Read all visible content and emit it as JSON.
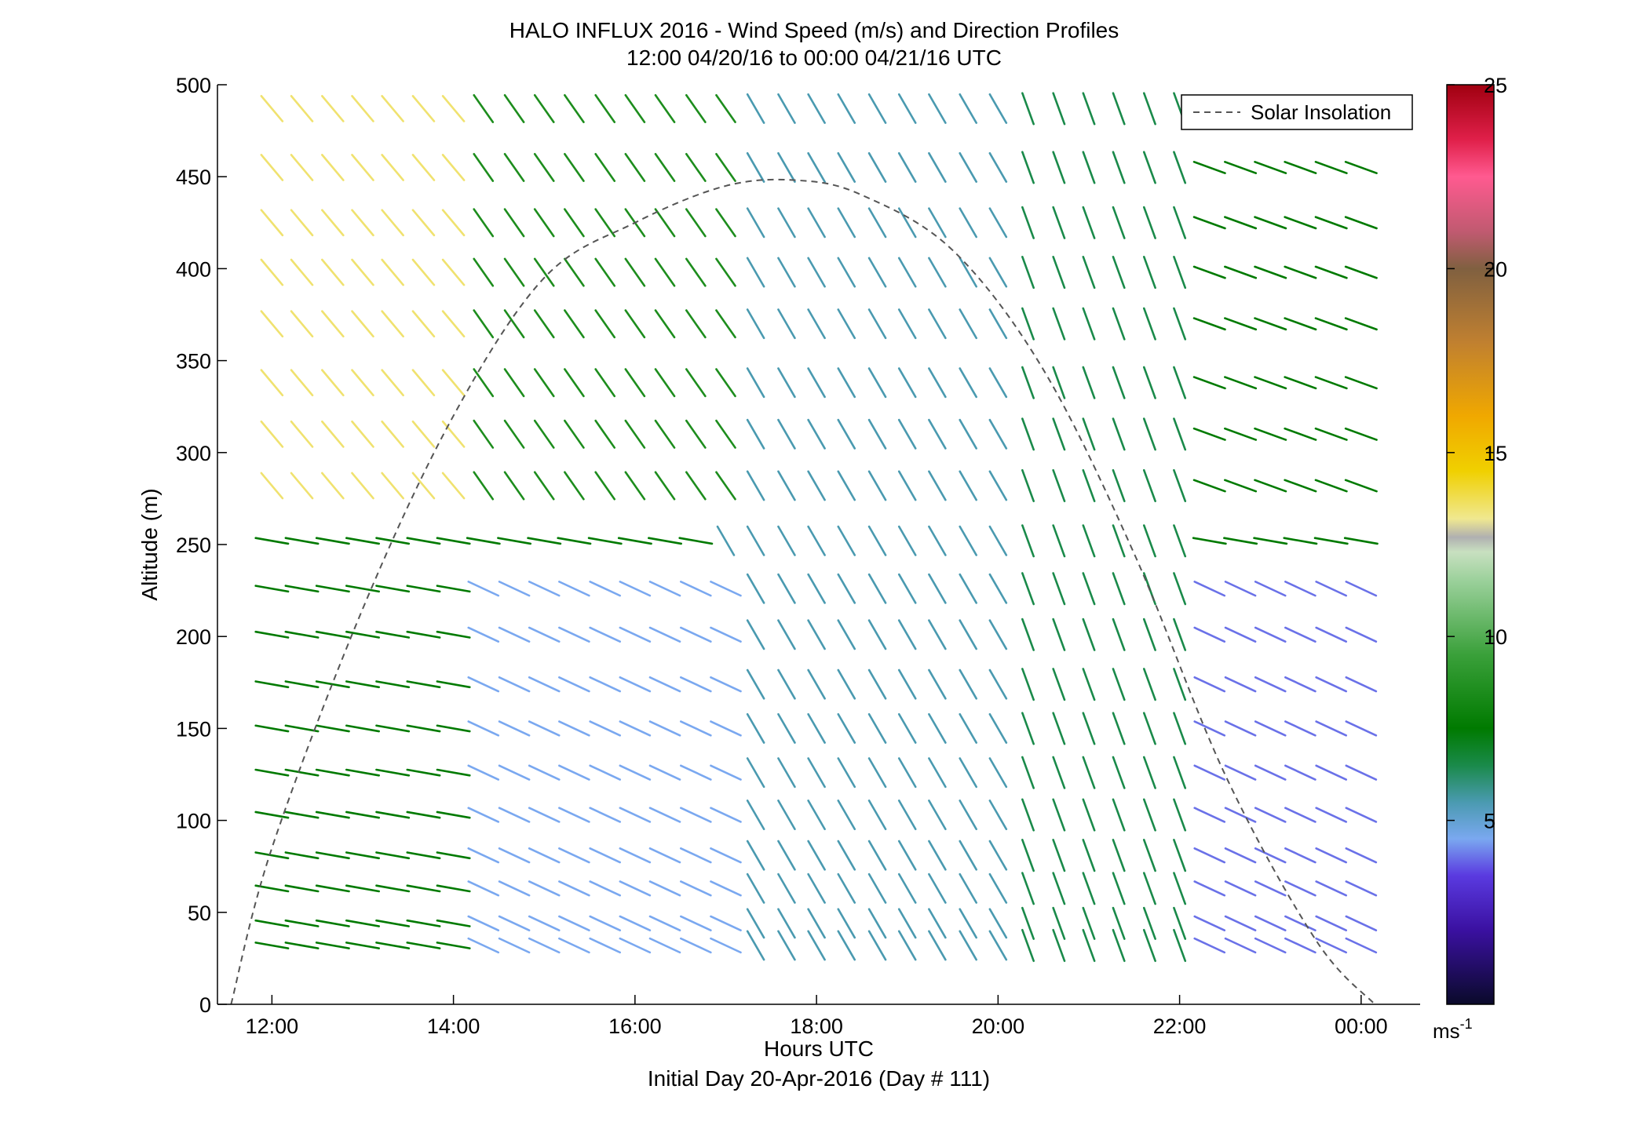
{
  "chart_data": {
    "type": "wind-barb-profile",
    "title": "HALO INFLUX 2016 - Wind Speed (m/s) and Direction Profiles",
    "subtitle": "12:00 04/20/16 to 00:00 04/21/16  UTC",
    "xlabel": "Hours UTC",
    "xlabel2": "Initial Day 20-Apr-2016 (Day # 111)",
    "ylabel": "Altitude (m)",
    "xlim": [
      11.4,
      24.65
    ],
    "ylim": [
      0,
      500
    ],
    "x_ticks": [
      12,
      14,
      16,
      18,
      20,
      22,
      24
    ],
    "x_tick_labels": [
      "12:00",
      "14:00",
      "16:00",
      "18:00",
      "20:00",
      "22:00",
      "00:00"
    ],
    "y_ticks": [
      0,
      50,
      100,
      150,
      200,
      250,
      300,
      350,
      400,
      450,
      500
    ],
    "y_tick_labels": [
      "0",
      "50",
      "100",
      "150",
      "200",
      "250",
      "300",
      "350",
      "400",
      "450",
      "500"
    ],
    "legend": {
      "label": "Solar Insolation",
      "placement": "top-right",
      "style": "dashed"
    },
    "solar_insolation": {
      "style": "dashed",
      "color": "#555555",
      "x": [
        11.55,
        12.0,
        13.0,
        14.0,
        15.0,
        16.0,
        17.0,
        17.8,
        18.5,
        19.5,
        20.5,
        21.5,
        22.5,
        23.5,
        24.15
      ],
      "y": [
        0,
        85,
        215,
        320,
        395,
        425,
        445,
        448,
        440,
        410,
        345,
        245,
        125,
        35,
        0
      ]
    },
    "colorbar": {
      "min": 0,
      "max": 25,
      "ticks": [
        5,
        10,
        15,
        20,
        25
      ],
      "tick_labels": [
        "5",
        "10",
        "15",
        "20",
        "25"
      ],
      "unit_label": "ms",
      "unit_exponent": "-1",
      "stops": [
        [
          0,
          "#0a0a2a"
        ],
        [
          2,
          "#3a10a0"
        ],
        [
          3.5,
          "#5a3ae0"
        ],
        [
          4.5,
          "#7aa8f0"
        ],
        [
          5.5,
          "#4a9ab0"
        ],
        [
          6.5,
          "#1a8a4a"
        ],
        [
          7.5,
          "#007a00"
        ],
        [
          9.5,
          "#3aa03a"
        ],
        [
          11.5,
          "#9ad09a"
        ],
        [
          12.3,
          "#c8e0c0"
        ],
        [
          12.7,
          "#b0b0b0"
        ],
        [
          13.2,
          "#f0e890"
        ],
        [
          14.5,
          "#f0d000"
        ],
        [
          16,
          "#f0a800"
        ],
        [
          18,
          "#c08030"
        ],
        [
          20,
          "#806040"
        ],
        [
          21,
          "#c05a70"
        ],
        [
          22.5,
          "#ff5a90"
        ],
        [
          23.5,
          "#e0204a"
        ],
        [
          25,
          "#a00010"
        ]
      ]
    },
    "barb_times": [
      12.0,
      12.33,
      12.67,
      13.0,
      13.33,
      13.67,
      14.0,
      14.33,
      14.67,
      15.0,
      15.33,
      15.67,
      16.0,
      16.33,
      16.67,
      17.0,
      17.33,
      17.67,
      18.0,
      18.33,
      18.67,
      19.0,
      19.33,
      19.67,
      20.0,
      20.33,
      20.67,
      21.0,
      21.33,
      21.67,
      22.0,
      22.33,
      22.67,
      23.0,
      23.33,
      23.67,
      24.0
    ],
    "barb_altitudes": [
      32,
      44,
      63,
      81,
      103,
      126,
      150,
      174,
      201,
      226,
      252,
      282,
      310,
      338,
      370,
      398,
      425,
      455,
      487
    ],
    "wind_regimes": [
      {
        "hours": [
          12.0,
          14.0
        ],
        "alt_range": [
          30,
          250
        ],
        "speed": 7.5,
        "toward_deg": 100
      },
      {
        "hours": [
          12.0,
          14.0
        ],
        "alt_range": [
          270,
          490
        ],
        "speed": 13.5,
        "toward_deg": 140
      },
      {
        "hours": [
          14.0,
          17.0
        ],
        "alt_range": [
          30,
          250
        ],
        "speed": 4.5,
        "toward_deg": 115
      },
      {
        "hours": [
          14.0,
          17.0
        ],
        "alt_range": [
          270,
          490
        ],
        "speed": 8.5,
        "toward_deg": 145
      },
      {
        "hours": [
          17.0,
          20.0
        ],
        "alt_range": [
          30,
          490
        ],
        "speed": 5.5,
        "toward_deg": 150
      },
      {
        "hours": [
          20.0,
          22.0
        ],
        "alt_range": [
          30,
          490
        ],
        "speed": 6.5,
        "toward_deg": 160
      },
      {
        "hours": [
          22.0,
          24.0
        ],
        "alt_range": [
          30,
          250
        ],
        "speed": 4.0,
        "toward_deg": 115
      },
      {
        "hours": [
          22.0,
          24.0
        ],
        "alt_range": [
          270,
          490
        ],
        "speed": 7.5,
        "toward_deg": 110
      }
    ]
  }
}
